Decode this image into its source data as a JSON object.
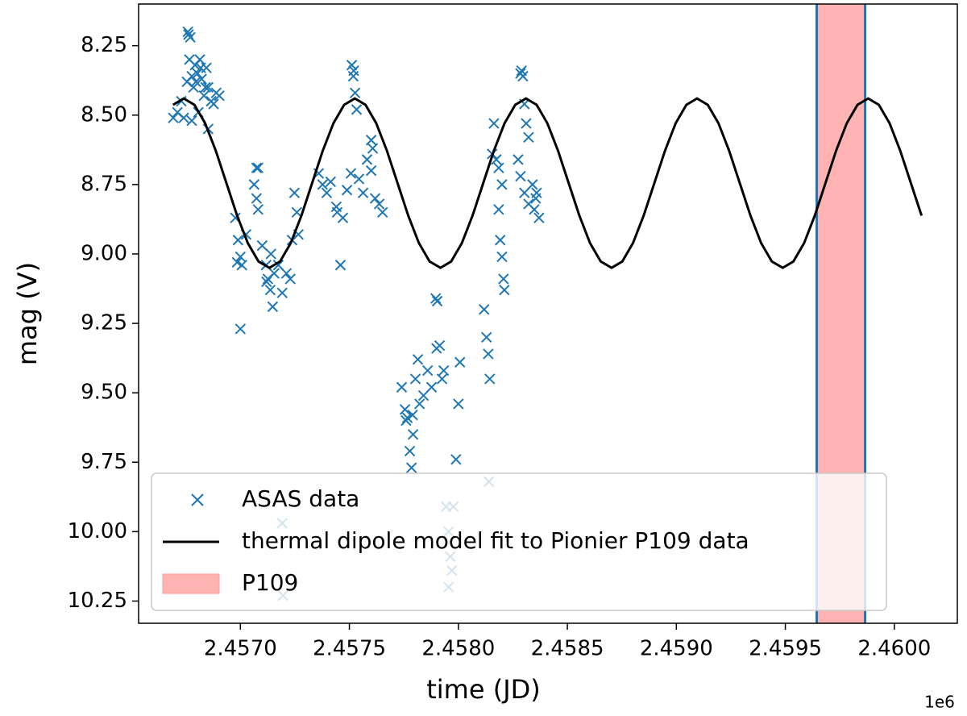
{
  "chart_data": {
    "type": "scatter",
    "xlabel": "time (JD)",
    "ylabel": "mag (V)",
    "x_offset_label": "1e6",
    "xlim": [
      2456533,
      2460289
    ],
    "ylim": [
      8.1,
      10.33
    ],
    "y_inverted": true,
    "xticks": [
      {
        "value": 2457000,
        "label": "2.4570"
      },
      {
        "value": 2457500,
        "label": "2.4575"
      },
      {
        "value": 2458000,
        "label": "2.4580"
      },
      {
        "value": 2458500,
        "label": "2.4585"
      },
      {
        "value": 2459000,
        "label": "2.4590"
      },
      {
        "value": 2459500,
        "label": "2.4595"
      },
      {
        "value": 2460000,
        "label": "2.4600"
      }
    ],
    "yticks": [
      8.25,
      {
        "value": 8.5,
        "label": "8.50"
      },
      8.75,
      {
        "value": 9.0,
        "label": "9.00"
      },
      9.25,
      {
        "value": 9.5,
        "label": "9.50"
      },
      9.75,
      {
        "value": 10.0,
        "label": "10.00"
      },
      10.25
    ],
    "legend": "lower left",
    "series": [
      {
        "name": "ASAS data",
        "type": "scatter",
        "marker": "x",
        "color": "#1f77b4",
        "x": [
          2456692,
          2456711,
          2456729,
          2456740,
          2456759,
          2456770,
          2456777,
          2456785,
          2456792,
          2456803,
          2456814,
          2456822,
          2456833,
          2456844,
          2456852,
          2456866,
          2456877,
          2456889,
          2456903,
          2456755,
          2456777,
          2456852,
          2456807,
          2456762,
          2456766,
          2456796,
          2456818,
          2456840,
          2456977,
          2456989,
          2457000,
          2457007,
          2457000,
          2457026,
          2457074,
          2457081,
          2457063,
          2457074,
          2457081,
          2457100,
          2457118,
          2457126,
          2457137,
          2457148,
          2457155,
          2457174,
          2457192,
          2457211,
          2457229,
          2457237,
          2457248,
          2457259,
          2457266,
          2456985,
          2457120,
          2457140,
          2457192,
          2457195,
          2457359,
          2457377,
          2457396,
          2457414,
          2457444,
          2457470,
          2457489,
          2457507,
          2457459,
          2457544,
          2457563,
          2457581,
          2457600,
          2457607,
          2457618,
          2457637,
          2457652,
          2457511,
          2457518,
          2457526,
          2457533,
          2457520,
          2457440,
          2457600,
          2457740,
          2457755,
          2457766,
          2457777,
          2457785,
          2457792,
          2457803,
          2457814,
          2457822,
          2457840,
          2457859,
          2457877,
          2457896,
          2457903,
          2457914,
          2457925,
          2457933,
          2457944,
          2457955,
          2457963,
          2457970,
          2457977,
          2457989,
          2458000,
          2458007,
          2457955,
          2457760,
          2457790,
          2457900,
          2458118,
          2458129,
          2458137,
          2458144,
          2458140,
          2458163,
          2458174,
          2458185,
          2458192,
          2458200,
          2458207,
          2458211,
          2458185,
          2458200,
          2458155,
          2458285,
          2458296,
          2458303,
          2458311,
          2458322,
          2458285,
          2458303,
          2458322,
          2458340,
          2458348,
          2458359,
          2458370,
          2458274,
          2458290,
          2458355
        ],
        "values": [
          8.51,
          8.49,
          8.45,
          8.51,
          8.2,
          8.22,
          8.36,
          8.4,
          8.32,
          8.35,
          8.3,
          8.37,
          8.43,
          8.33,
          8.4,
          8.45,
          8.46,
          8.42,
          8.43,
          8.38,
          8.52,
          8.55,
          8.49,
          8.21,
          8.3,
          8.38,
          8.33,
          8.4,
          8.87,
          8.95,
          9.01,
          9.04,
          9.27,
          8.93,
          8.69,
          8.69,
          8.75,
          8.8,
          8.84,
          8.97,
          9.04,
          9.09,
          9.13,
          9.19,
          9.07,
          9.04,
          9.14,
          9.07,
          9.09,
          8.95,
          8.78,
          8.85,
          8.93,
          9.03,
          9.1,
          9.0,
          9.97,
          10.23,
          8.71,
          8.75,
          8.78,
          8.74,
          8.85,
          8.87,
          8.77,
          8.71,
          9.04,
          8.73,
          8.78,
          8.66,
          8.59,
          8.62,
          8.8,
          8.82,
          8.85,
          8.32,
          8.36,
          8.42,
          8.48,
          8.34,
          8.83,
          8.7,
          9.48,
          9.56,
          9.59,
          9.71,
          9.77,
          9.65,
          9.45,
          9.38,
          9.54,
          9.51,
          9.42,
          9.48,
          9.16,
          9.17,
          9.33,
          9.45,
          9.42,
          9.91,
          10.0,
          10.09,
          10.14,
          9.91,
          9.74,
          9.54,
          9.39,
          10.2,
          9.6,
          9.58,
          9.34,
          9.2,
          9.3,
          9.36,
          9.45,
          9.82,
          8.53,
          8.66,
          8.84,
          8.95,
          9.01,
          9.09,
          9.13,
          8.69,
          8.75,
          8.64,
          8.35,
          8.36,
          8.46,
          8.53,
          8.58,
          8.72,
          8.78,
          8.82,
          8.75,
          8.84,
          8.78,
          8.87,
          8.66,
          8.34,
          8.8
        ]
      },
      {
        "name": "thermal dipole model fit to Pionier P109 data",
        "type": "line",
        "color": "#000000",
        "x": [
          2456691,
          2456740,
          2456789,
          2456838,
          2456887,
          2456936,
          2456985,
          2457034,
          2457083,
          2457133,
          2457182,
          2457231,
          2457280,
          2457329,
          2457378,
          2457427,
          2457476,
          2457525,
          2457574,
          2457623,
          2457672,
          2457721,
          2457770,
          2457819,
          2457868,
          2457918,
          2457967,
          2458016,
          2458065,
          2458114,
          2458163,
          2458212,
          2458261,
          2458310,
          2458359,
          2458408,
          2458457,
          2458506,
          2458555,
          2458604,
          2458653,
          2458703,
          2458752,
          2458801,
          2458850,
          2458899,
          2458948,
          2458997,
          2459046,
          2459095,
          2459144,
          2459193,
          2459242,
          2459291,
          2459340,
          2459389,
          2459438,
          2459488,
          2459537,
          2459586,
          2459635,
          2459684,
          2459733,
          2459782,
          2459831,
          2459880,
          2459929,
          2459978,
          2460027,
          2460076,
          2460125
        ],
        "values": [
          8.463,
          8.44,
          8.463,
          8.529,
          8.628,
          8.745,
          8.862,
          8.961,
          9.027,
          9.05,
          9.027,
          8.961,
          8.862,
          8.745,
          8.628,
          8.529,
          8.463,
          8.44,
          8.463,
          8.529,
          8.628,
          8.745,
          8.862,
          8.961,
          9.027,
          9.05,
          9.027,
          8.961,
          8.862,
          8.745,
          8.628,
          8.529,
          8.463,
          8.44,
          8.463,
          8.529,
          8.628,
          8.745,
          8.862,
          8.961,
          9.027,
          9.05,
          9.027,
          8.961,
          8.862,
          8.745,
          8.628,
          8.529,
          8.463,
          8.44,
          8.463,
          8.529,
          8.628,
          8.745,
          8.862,
          8.961,
          9.027,
          9.05,
          9.027,
          8.961,
          8.862,
          8.745,
          8.628,
          8.529,
          8.463,
          8.44,
          8.463,
          8.529,
          8.628,
          8.745,
          8.862
        ]
      }
    ],
    "spans": [
      {
        "name": "P109",
        "x": [
          2459644,
          2459866
        ],
        "color": "#ff9999",
        "edgecolor": "#1f77b4"
      }
    ]
  }
}
